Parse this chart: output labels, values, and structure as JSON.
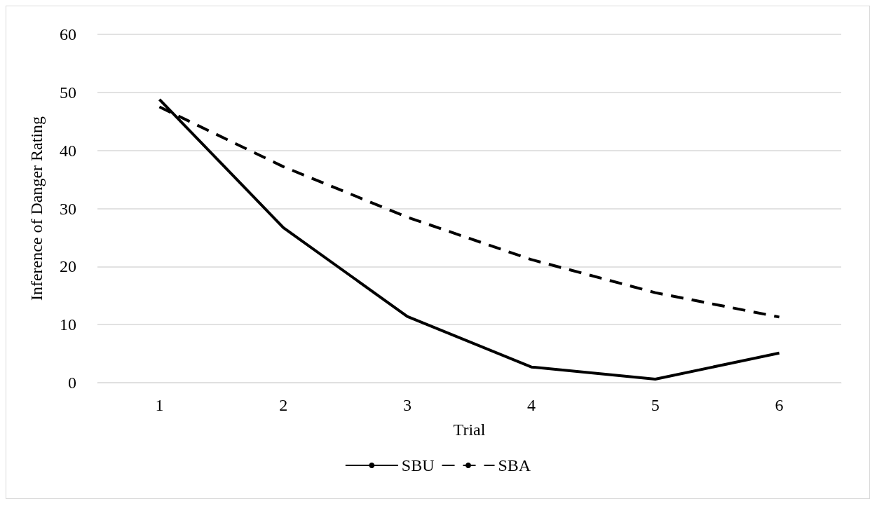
{
  "chart_data": {
    "type": "line",
    "xlabel": "Trial",
    "ylabel": "Inference of Danger Rating",
    "categories": [
      "1",
      "2",
      "3",
      "4",
      "5",
      "6"
    ],
    "series": [
      {
        "name": "SBU",
        "color": "#000000",
        "line_style": "solid",
        "values": [
          48.8,
          26.7,
          11.4,
          2.7,
          0.6,
          5.1
        ]
      },
      {
        "name": "SBA",
        "color": "#000000",
        "line_style": "dashed",
        "values": [
          47.5,
          37.2,
          28.5,
          21.2,
          15.5,
          11.3
        ]
      }
    ],
    "ylim": [
      0,
      60
    ],
    "yticks": [
      0,
      10,
      20,
      30,
      40,
      50,
      60
    ],
    "grid": "y",
    "legend": "bottom",
    "marker": "none"
  }
}
